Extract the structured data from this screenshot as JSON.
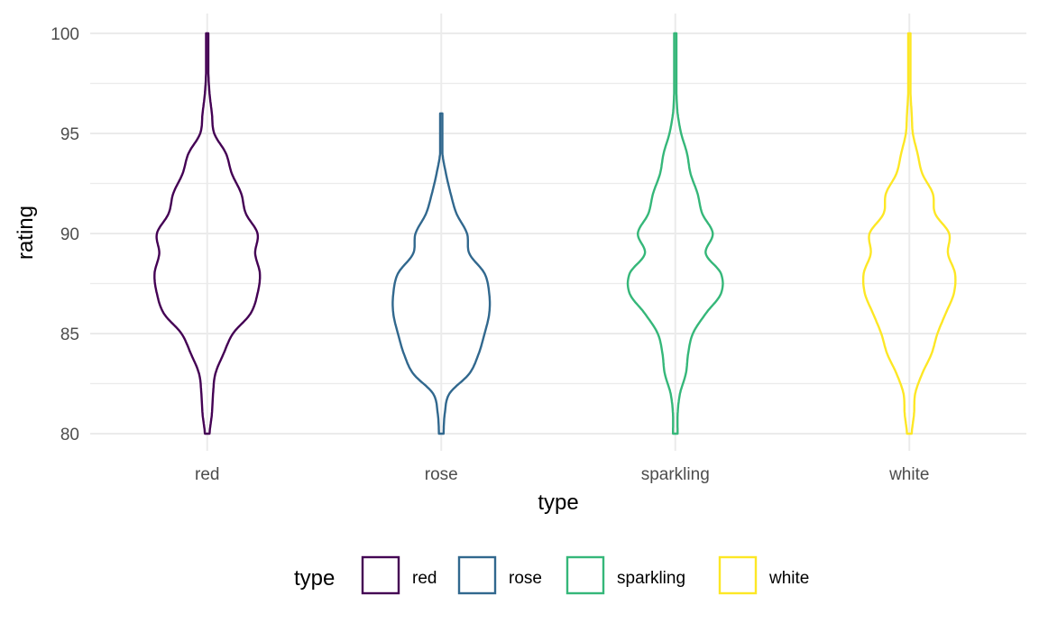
{
  "chart_data": {
    "type": "violin",
    "xlabel": "type",
    "ylabel": "rating",
    "categories": [
      "red",
      "rose",
      "sparkling",
      "white"
    ],
    "ylim": [
      80,
      100
    ],
    "yticks": [
      80,
      85,
      90,
      95,
      100
    ],
    "grid": true,
    "legend": {
      "title": "type",
      "position": "bottom",
      "entries": [
        "red",
        "rose",
        "sparkling",
        "white"
      ]
    },
    "series": [
      {
        "name": "red",
        "color": "#440154",
        "min": 80,
        "max": 100,
        "ratings": [
          80,
          81,
          82,
          83,
          84,
          85,
          86,
          87,
          88,
          89,
          90,
          91,
          92,
          93,
          94,
          95,
          96,
          97,
          98,
          99,
          100
        ],
        "half_width": [
          0.02,
          0.04,
          0.05,
          0.07,
          0.14,
          0.22,
          0.37,
          0.43,
          0.45,
          0.41,
          0.43,
          0.33,
          0.29,
          0.21,
          0.16,
          0.06,
          0.04,
          0.02,
          0.01,
          0.01,
          0.01
        ]
      },
      {
        "name": "rose",
        "color": "#31688e",
        "min": 80,
        "max": 96,
        "ratings": [
          80,
          81,
          82,
          83,
          84,
          85,
          86,
          87,
          88,
          89,
          90,
          91,
          92,
          93,
          94,
          95,
          96
        ],
        "half_width": [
          0.02,
          0.03,
          0.07,
          0.24,
          0.32,
          0.37,
          0.41,
          0.41,
          0.37,
          0.24,
          0.22,
          0.13,
          0.08,
          0.04,
          0.01,
          0.01,
          0.01
        ]
      },
      {
        "name": "sparkling",
        "color": "#35b779",
        "min": 80,
        "max": 100,
        "ratings": [
          80,
          81,
          82,
          83,
          84,
          85,
          86,
          87,
          88,
          89,
          90,
          91,
          92,
          93,
          94,
          95,
          96,
          97,
          98,
          99,
          100
        ],
        "half_width": [
          0.02,
          0.02,
          0.04,
          0.09,
          0.11,
          0.15,
          0.26,
          0.39,
          0.39,
          0.26,
          0.32,
          0.23,
          0.19,
          0.13,
          0.1,
          0.05,
          0.02,
          0.01,
          0.01,
          0.01,
          0.01
        ]
      },
      {
        "name": "white",
        "color": "#fde725",
        "min": 80,
        "max": 100,
        "ratings": [
          80,
          81,
          82,
          83,
          84,
          85,
          86,
          87,
          88,
          89,
          90,
          91,
          92,
          93,
          94,
          95,
          96,
          97,
          98,
          99,
          100
        ],
        "half_width": [
          0.02,
          0.04,
          0.05,
          0.11,
          0.19,
          0.24,
          0.31,
          0.38,
          0.39,
          0.33,
          0.34,
          0.22,
          0.2,
          0.11,
          0.07,
          0.03,
          0.02,
          0.01,
          0.01,
          0.01,
          0.01
        ]
      }
    ]
  }
}
